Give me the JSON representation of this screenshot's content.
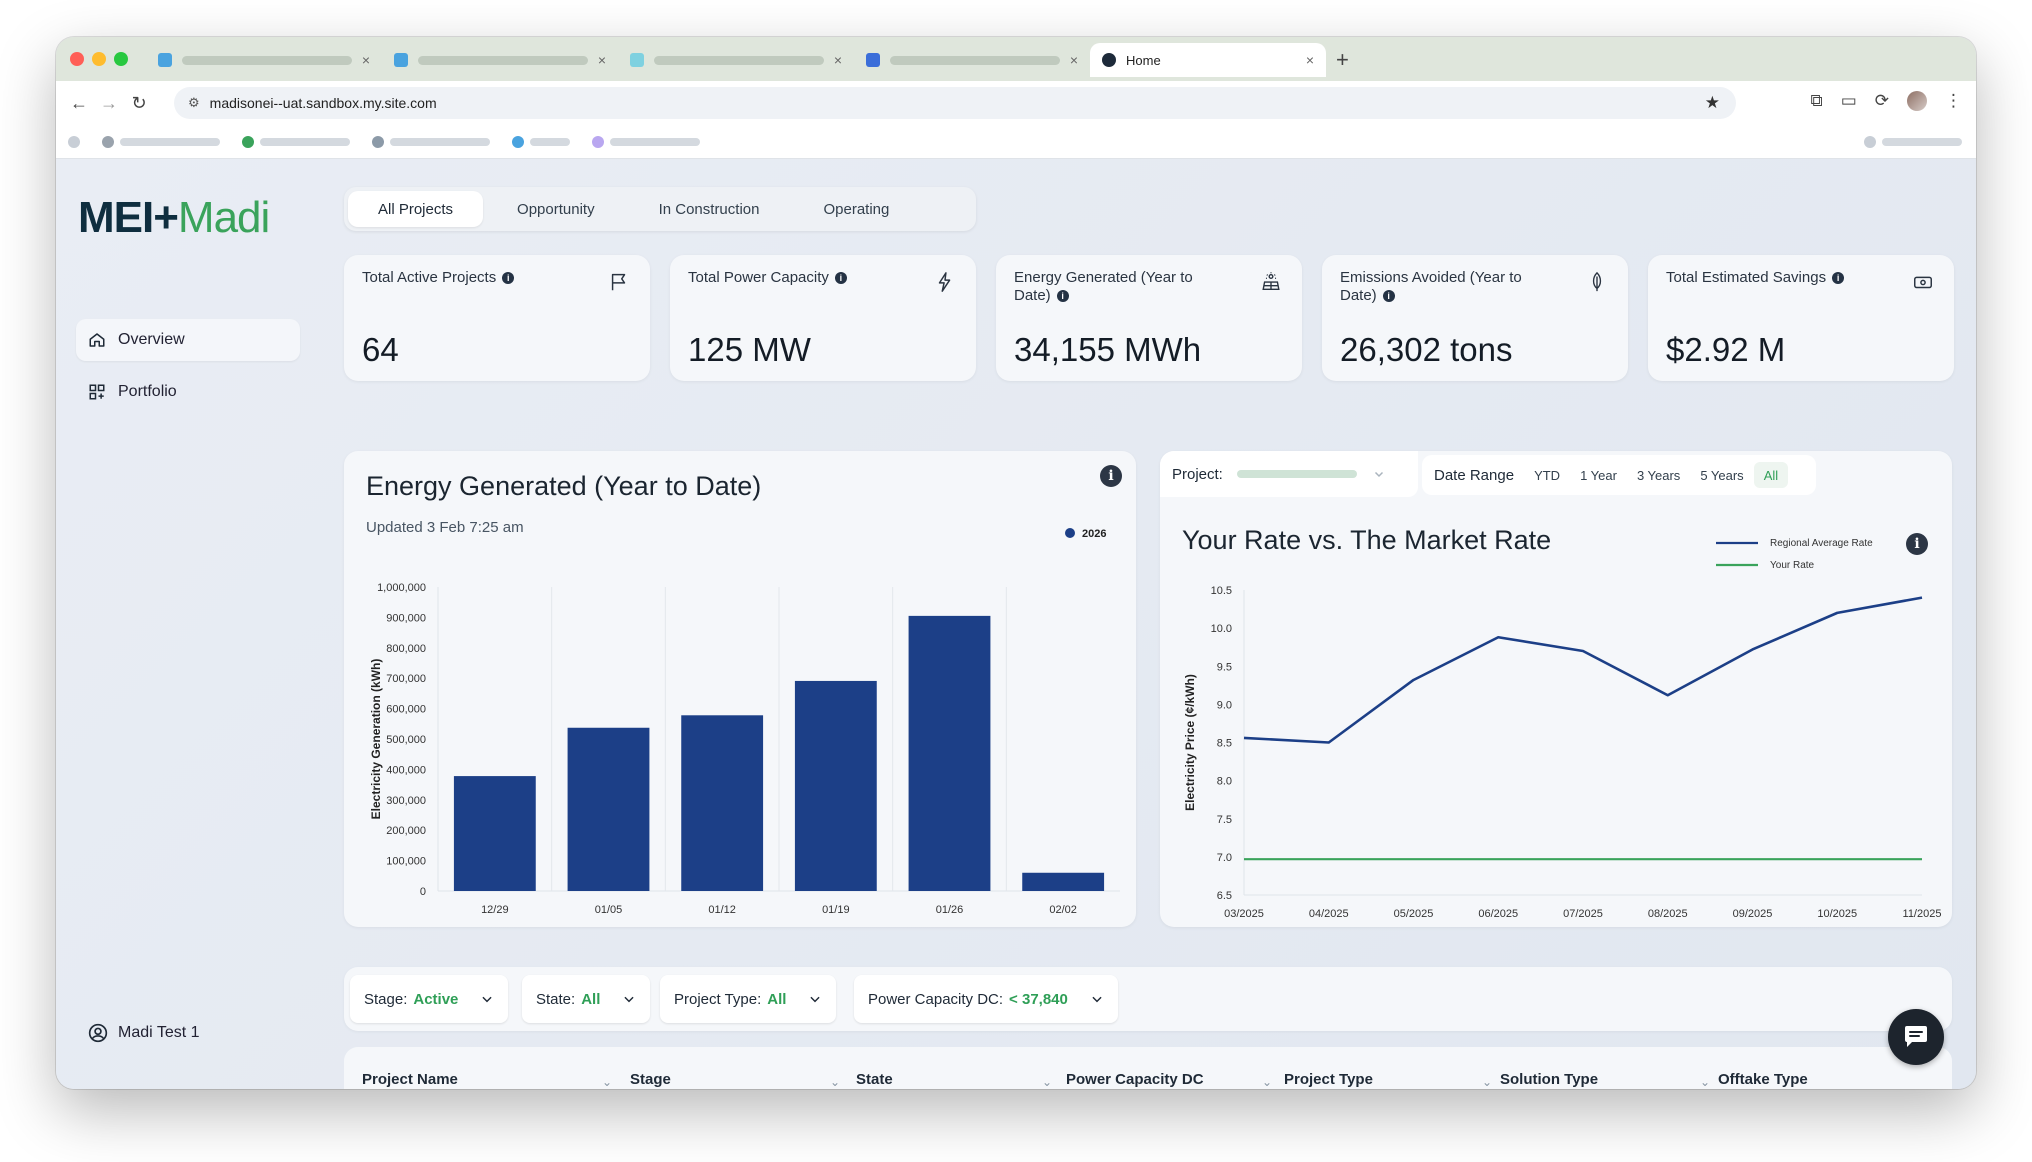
{
  "browser": {
    "active_tab_title": "Home",
    "url": "madisonei--uat.sandbox.my.site.com"
  },
  "brand": {
    "logo_part1": "MEI+",
    "logo_part2": "Madi"
  },
  "sidebar": {
    "items": [
      {
        "label": "Overview",
        "icon": "home-icon"
      },
      {
        "label": "Portfolio",
        "icon": "grid-icon"
      }
    ],
    "user": "Madi Test 1"
  },
  "tabs": [
    "All Projects",
    "Opportunity",
    "In Construction",
    "Operating"
  ],
  "kpis": [
    {
      "label": "Total Active Projects",
      "value": "64",
      "icon": "flag-icon"
    },
    {
      "label": "Total Power Capacity",
      "value": "125 MW",
      "icon": "bolt-icon"
    },
    {
      "label": "Energy Generated (Year to Date)",
      "value": "34,155 MWh",
      "icon": "solar-panel-icon"
    },
    {
      "label": "Emissions Avoided (Year to Date)",
      "value": "26,302 tons",
      "icon": "leaf-icon"
    },
    {
      "label": "Total Estimated Savings",
      "value": "$2.92 M",
      "icon": "money-icon"
    }
  ],
  "energy_card": {
    "title": "Energy Generated (Year to Date)",
    "updated": "Updated 3 Feb 7:25 am"
  },
  "rate_card": {
    "project_label": "Project:",
    "date_range_label": "Date Range",
    "range_options": [
      "YTD",
      "1 Year",
      "3 Years",
      "5 Years",
      "All"
    ],
    "selected_range": "All",
    "title": "Your Rate vs. The Market Rate"
  },
  "colors": {
    "accent_green": "#2f9f57",
    "navy": "#1c3f87",
    "rate_green": "#3aa35b"
  },
  "chart_data": [
    {
      "type": "bar",
      "categories": [
        "12/29",
        "01/05",
        "01/12",
        "01/19",
        "01/26",
        "02/02"
      ],
      "series": [
        {
          "name": "2026",
          "values": [
            378000,
            537000,
            578000,
            691000,
            905000,
            60000
          ]
        }
      ],
      "ylabel": "Electricity Generation (kWh)",
      "ylim": [
        0,
        1000000
      ],
      "yticks": [
        "0",
        "100,000",
        "200,000",
        "300,000",
        "400,000",
        "500,000",
        "600,000",
        "700,000",
        "800,000",
        "900,000",
        "1,000,000"
      ],
      "legend": "top-right",
      "grid": "vertical"
    },
    {
      "type": "line",
      "x": [
        "03/2025",
        "04/2025",
        "05/2025",
        "06/2025",
        "07/2025",
        "08/2025",
        "09/2025",
        "10/2025",
        "11/2025"
      ],
      "series": [
        {
          "name": "Regional Average Rate",
          "values": [
            8.56,
            8.5,
            9.32,
            9.88,
            9.7,
            9.12,
            9.72,
            10.2,
            10.4
          ]
        },
        {
          "name": "Your Rate",
          "values": [
            6.97,
            6.97,
            6.97,
            6.97,
            6.97,
            6.97,
            6.97,
            6.97,
            6.97
          ]
        }
      ],
      "ylabel": "Electricity Price (¢/kWh)",
      "ylim": [
        6.5,
        10.5
      ],
      "yticks": [
        "6.5",
        "7.0",
        "7.5",
        "8.0",
        "8.5",
        "9.0",
        "9.5",
        "10.0",
        "10.5"
      ],
      "legend": "top-right"
    }
  ],
  "filters": [
    {
      "label": "Stage:",
      "value": "Active"
    },
    {
      "label": "State:",
      "value": "All"
    },
    {
      "label": "Project Type:",
      "value": "All"
    },
    {
      "label": "Power Capacity DC:",
      "value": "< 37,840"
    }
  ],
  "table": {
    "columns": [
      "Project Name",
      "Stage",
      "State",
      "Power Capacity DC",
      "Project Type",
      "Solution Type",
      "Offtake Type"
    ]
  }
}
